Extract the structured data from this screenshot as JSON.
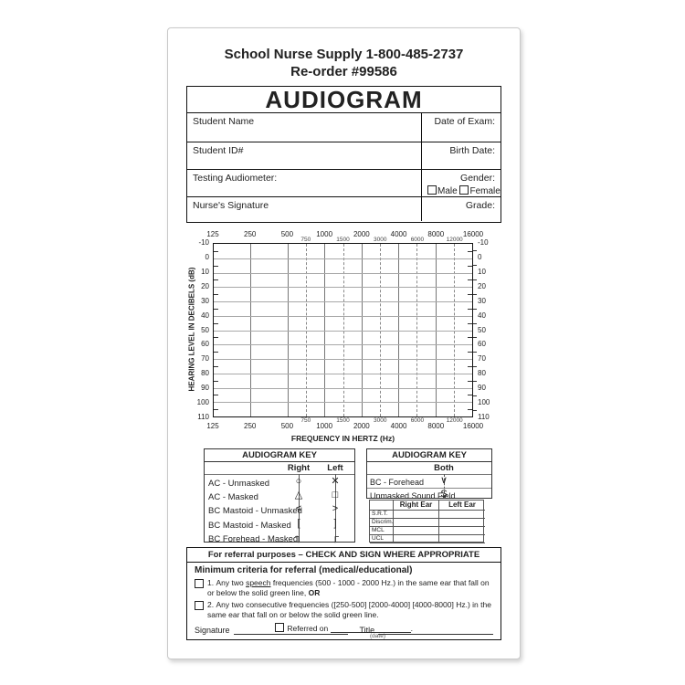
{
  "header": {
    "line1": "School Nurse Supply 1-800-485-2737",
    "line2": "Re-order #99586"
  },
  "form": {
    "title": "AUDIOGRAM",
    "student_name": "Student Name",
    "date_of_exam": "Date of Exam:",
    "student_id": "Student ID#",
    "birth_date": "Birth Date:",
    "testing_audiometer": "Testing Audiometer:",
    "gender": "Gender:",
    "male": "Male",
    "female": "Female",
    "nurses_signature": "Nurse's Signature",
    "grade": "Grade:"
  },
  "chart": {
    "type": "audiogram-grid",
    "y_axis_label": "HEARING LEVEL IN DECIBELS (dB)",
    "x_axis_label": "FREQUENCY IN HERTZ (Hz)",
    "major_frequencies": [
      "125",
      "250",
      "500",
      "1000",
      "2000",
      "4000",
      "8000",
      "16000"
    ],
    "minor_frequencies": [
      "750",
      "1500",
      "3000",
      "6000",
      "12000"
    ],
    "db_levels": [
      "-10",
      "0",
      "10",
      "20",
      "30",
      "40",
      "50",
      "60",
      "70",
      "80",
      "90",
      "100",
      "110"
    ]
  },
  "key_left": {
    "title": "AUDIOGRAM KEY",
    "col_right": "Right",
    "col_left": "Left",
    "rows": [
      {
        "label": "AC - Unmasked",
        "right": "○",
        "left": "✕"
      },
      {
        "label": "AC - Masked",
        "right": "△",
        "left": "□"
      },
      {
        "label": "BC Mastoid - Unmasked",
        "right": "<",
        "left": ">"
      },
      {
        "label": "BC Mastoid - Masked",
        "right": "[",
        "left": "]"
      },
      {
        "label": "BC Forehead - Masked",
        "right": "┐",
        "left": "┌"
      }
    ]
  },
  "key_right": {
    "title": "AUDIOGRAM KEY",
    "col_both": "Both",
    "rows": [
      {
        "label": "BC - Forehead",
        "symbol": "∨"
      },
      {
        "label": "Unmasked Sound Field",
        "symbol": "S"
      }
    ],
    "ear_table": {
      "col_right": "Right Ear",
      "col_left": "Left Ear",
      "row_labels": [
        "S.R.T.",
        "Discrim.",
        "MCL",
        "UCL"
      ]
    }
  },
  "referral": {
    "header": "For referral purposes – CHECK AND SIGN WHERE APPROPRIATE",
    "subheader": "Minimum criteria for referral (medical/educational)",
    "item1": {
      "num": "1.",
      "pre": "Any two ",
      "underline": "speech",
      "mid": " frequencies (500 - 1000 - 2000 Hz.) in the same ear that fall on or below the solid green line, ",
      "bold": "OR"
    },
    "item2": {
      "num": "2.",
      "text": "Any two consecutive frequencies ([250-500] [2000-4000] [4000-8000] Hz.) in the same ear that fall on or below the solid green line."
    },
    "referred_on": "Referred on",
    "period": ".",
    "date_hint": "(date)",
    "signature_label": "Signature",
    "title_label": "Title"
  }
}
